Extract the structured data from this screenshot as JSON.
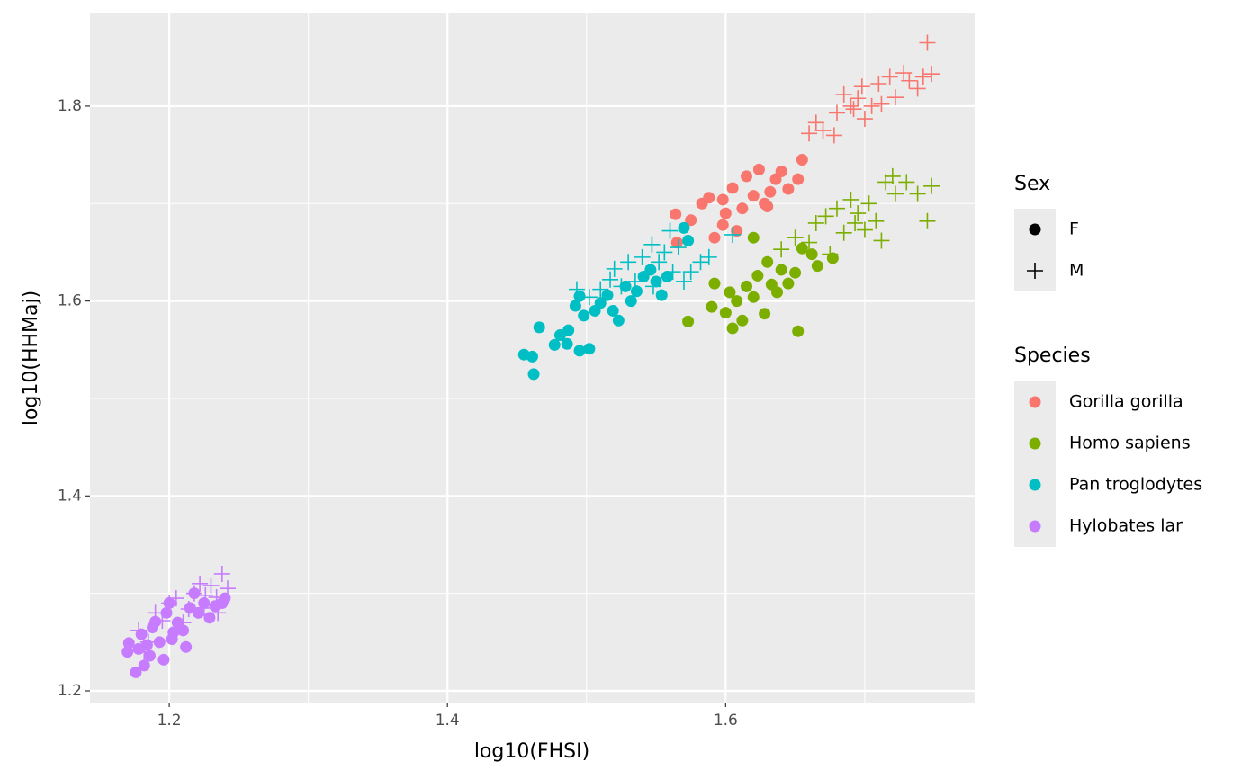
{
  "chart_data": {
    "type": "scatter",
    "x_label": "log10(FHSI)",
    "y_label": "log10(HHMaj)",
    "xlim": [
      1.143,
      1.779
    ],
    "ylim": [
      1.188,
      1.895
    ],
    "xticks": [
      1.2,
      1.4,
      1.6
    ],
    "yticks": [
      1.2,
      1.4,
      1.6,
      1.8
    ],
    "xminor": [
      1.3,
      1.5,
      1.7
    ],
    "yminor": [
      1.3,
      1.5,
      1.7
    ],
    "grid": true,
    "legend": {
      "sex": {
        "title": "Sex",
        "entries": [
          {
            "name": "F",
            "shape": "circle"
          },
          {
            "name": "M",
            "shape": "plus"
          }
        ]
      },
      "species": {
        "title": "Species",
        "entries": [
          {
            "name": "Gorilla gorilla",
            "color": "#f8766d"
          },
          {
            "name": "Homo sapiens",
            "color": "#7cae00"
          },
          {
            "name": "Pan troglodytes",
            "color": "#00bfc4"
          },
          {
            "name": "Hylobates lar",
            "color": "#c77cff"
          }
        ]
      }
    },
    "series": [
      {
        "species": "Gorilla gorilla",
        "sex": "F",
        "x": [
          1.564,
          1.565,
          1.575,
          1.583,
          1.588,
          1.592,
          1.598,
          1.6,
          1.605,
          1.608,
          1.612,
          1.615,
          1.62,
          1.624,
          1.628,
          1.632,
          1.636,
          1.64,
          1.645,
          1.652,
          1.655,
          1.598,
          1.63
        ],
        "y": [
          1.689,
          1.66,
          1.683,
          1.7,
          1.706,
          1.665,
          1.678,
          1.69,
          1.716,
          1.672,
          1.695,
          1.728,
          1.708,
          1.735,
          1.7,
          1.712,
          1.725,
          1.733,
          1.715,
          1.725,
          1.745,
          1.704,
          1.697
        ]
      },
      {
        "species": "Gorilla gorilla",
        "sex": "M",
        "x": [
          1.66,
          1.665,
          1.67,
          1.678,
          1.68,
          1.685,
          1.69,
          1.695,
          1.698,
          1.7,
          1.705,
          1.71,
          1.712,
          1.718,
          1.722,
          1.728,
          1.732,
          1.738,
          1.742,
          1.748,
          1.745,
          1.692
        ],
        "y": [
          1.772,
          1.783,
          1.775,
          1.77,
          1.793,
          1.812,
          1.8,
          1.808,
          1.82,
          1.787,
          1.8,
          1.823,
          1.802,
          1.83,
          1.809,
          1.834,
          1.826,
          1.818,
          1.83,
          1.833,
          1.865,
          1.797
        ]
      },
      {
        "species": "Homo sapiens",
        "sex": "F",
        "x": [
          1.573,
          1.59,
          1.592,
          1.6,
          1.603,
          1.605,
          1.608,
          1.612,
          1.615,
          1.62,
          1.623,
          1.628,
          1.63,
          1.633,
          1.637,
          1.64,
          1.645,
          1.65,
          1.652,
          1.655,
          1.662,
          1.666,
          1.677,
          1.62
        ],
        "y": [
          1.579,
          1.594,
          1.618,
          1.588,
          1.609,
          1.572,
          1.6,
          1.58,
          1.615,
          1.604,
          1.626,
          1.587,
          1.64,
          1.617,
          1.609,
          1.632,
          1.618,
          1.629,
          1.569,
          1.654,
          1.648,
          1.636,
          1.644,
          1.665
        ]
      },
      {
        "species": "Homo sapiens",
        "sex": "M",
        "x": [
          1.64,
          1.65,
          1.66,
          1.665,
          1.672,
          1.675,
          1.68,
          1.685,
          1.69,
          1.695,
          1.7,
          1.703,
          1.708,
          1.712,
          1.715,
          1.72,
          1.722,
          1.73,
          1.738,
          1.745,
          1.748,
          1.693
        ],
        "y": [
          1.653,
          1.665,
          1.66,
          1.68,
          1.687,
          1.648,
          1.695,
          1.67,
          1.704,
          1.69,
          1.673,
          1.7,
          1.682,
          1.662,
          1.722,
          1.728,
          1.71,
          1.722,
          1.71,
          1.682,
          1.718,
          1.68
        ]
      },
      {
        "species": "Pan troglodytes",
        "sex": "F",
        "x": [
          1.455,
          1.461,
          1.462,
          1.466,
          1.477,
          1.481,
          1.487,
          1.492,
          1.495,
          1.498,
          1.502,
          1.506,
          1.51,
          1.515,
          1.519,
          1.523,
          1.528,
          1.532,
          1.536,
          1.541,
          1.546,
          1.55,
          1.554,
          1.558,
          1.57,
          1.573,
          1.495,
          1.486
        ],
        "y": [
          1.545,
          1.543,
          1.525,
          1.573,
          1.555,
          1.565,
          1.57,
          1.595,
          1.549,
          1.585,
          1.551,
          1.59,
          1.598,
          1.606,
          1.59,
          1.58,
          1.615,
          1.6,
          1.61,
          1.625,
          1.632,
          1.62,
          1.606,
          1.625,
          1.675,
          1.662,
          1.605,
          1.556
        ]
      },
      {
        "species": "Pan troglodytes",
        "sex": "M",
        "x": [
          1.493,
          1.502,
          1.51,
          1.517,
          1.52,
          1.525,
          1.53,
          1.535,
          1.54,
          1.543,
          1.547,
          1.552,
          1.556,
          1.56,
          1.562,
          1.566,
          1.57,
          1.575,
          1.582,
          1.588,
          1.605,
          1.548
        ],
        "y": [
          1.612,
          1.604,
          1.612,
          1.622,
          1.633,
          1.615,
          1.64,
          1.62,
          1.645,
          1.628,
          1.658,
          1.64,
          1.65,
          1.672,
          1.63,
          1.655,
          1.62,
          1.63,
          1.64,
          1.645,
          1.668,
          1.615
        ]
      },
      {
        "species": "Hylobates lar",
        "sex": "F",
        "x": [
          1.17,
          1.171,
          1.176,
          1.178,
          1.18,
          1.182,
          1.184,
          1.186,
          1.188,
          1.19,
          1.193,
          1.196,
          1.198,
          1.2,
          1.203,
          1.206,
          1.21,
          1.212,
          1.215,
          1.218,
          1.221,
          1.225,
          1.229,
          1.233,
          1.238,
          1.24,
          1.202
        ],
        "y": [
          1.24,
          1.249,
          1.219,
          1.243,
          1.258,
          1.226,
          1.247,
          1.236,
          1.265,
          1.271,
          1.25,
          1.232,
          1.28,
          1.29,
          1.26,
          1.27,
          1.262,
          1.245,
          1.285,
          1.3,
          1.28,
          1.29,
          1.275,
          1.287,
          1.29,
          1.295,
          1.253
        ]
      },
      {
        "species": "Hylobates lar",
        "sex": "M",
        "x": [
          1.178,
          1.185,
          1.19,
          1.195,
          1.2,
          1.205,
          1.21,
          1.214,
          1.218,
          1.222,
          1.226,
          1.23,
          1.234,
          1.238,
          1.242,
          1.235,
          1.182,
          1.225
        ],
        "y": [
          1.262,
          1.25,
          1.28,
          1.272,
          1.29,
          1.295,
          1.27,
          1.284,
          1.3,
          1.31,
          1.298,
          1.308,
          1.296,
          1.32,
          1.305,
          1.28,
          1.24,
          1.285
        ]
      }
    ]
  }
}
